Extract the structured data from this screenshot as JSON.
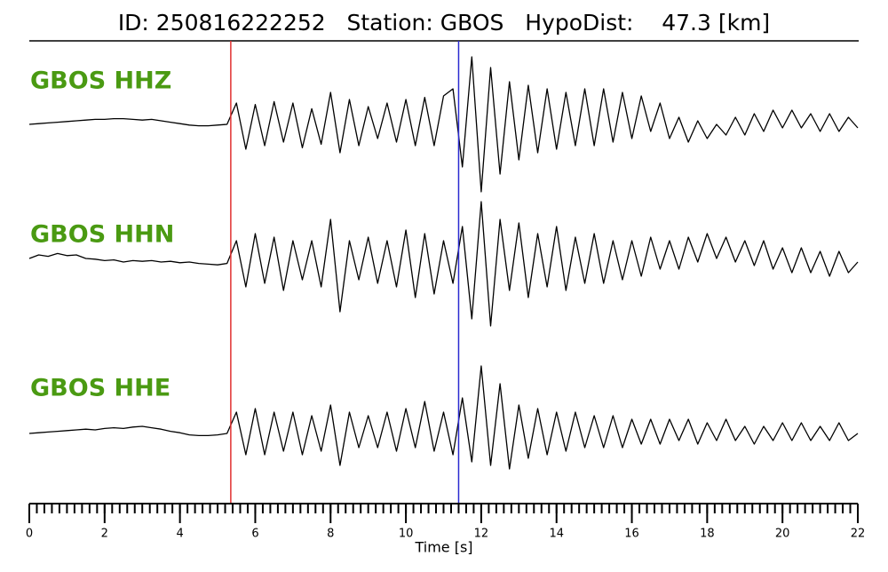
{
  "chart_data": {
    "type": "seismogram",
    "title": "ID: 250816222252   Station: GBOS   HypoDist:    47.3 [km]",
    "xlabel": "Time [s]",
    "xlim": [
      0,
      22
    ],
    "xticks": [
      0,
      2,
      4,
      6,
      8,
      10,
      12,
      14,
      16,
      18,
      20,
      22
    ],
    "xminor_step": 0.2,
    "ylim": [
      -1,
      1
    ],
    "label_color": "#4a9a12",
    "x": [
      0,
      0.25,
      0.5,
      0.75,
      1,
      1.25,
      1.5,
      1.75,
      2,
      2.25,
      2.5,
      2.75,
      3,
      3.25,
      3.5,
      3.75,
      4,
      4.25,
      4.5,
      4.75,
      5,
      5.25,
      5.5,
      5.75,
      6,
      6.25,
      6.5,
      6.75,
      7,
      7.25,
      7.5,
      7.75,
      8,
      8.25,
      8.5,
      8.75,
      9,
      9.25,
      9.5,
      9.75,
      10,
      10.25,
      10.5,
      10.75,
      11,
      11.25,
      11.5,
      11.75,
      12,
      12.25,
      12.5,
      12.75,
      13,
      13.25,
      13.5,
      13.75,
      14,
      14.25,
      14.5,
      14.75,
      15,
      15.25,
      15.5,
      15.75,
      16,
      16.25,
      16.5,
      16.75,
      17,
      17.25,
      17.5,
      17.75,
      18,
      18.25,
      18.5,
      18.75,
      19,
      19.25,
      19.5,
      19.75,
      20,
      20.25,
      20.5,
      20.75,
      21,
      21.25,
      21.5,
      21.75,
      22
    ],
    "series": [
      {
        "name": "GBOS HHZ",
        "color": "#000000",
        "values": [
          0,
          0.01,
          0.02,
          0.03,
          0.04,
          0.05,
          0.06,
          0.07,
          0.07,
          0.08,
          0.08,
          0.07,
          0.06,
          0.07,
          0.05,
          0.03,
          0.01,
          -0.01,
          -0.02,
          -0.02,
          -0.01,
          0.0,
          0.3,
          -0.35,
          0.28,
          -0.3,
          0.32,
          -0.25,
          0.3,
          -0.33,
          0.22,
          -0.28,
          0.45,
          -0.4,
          0.35,
          -0.3,
          0.25,
          -0.2,
          0.3,
          -0.25,
          0.35,
          -0.3,
          0.38,
          -0.3,
          0.4,
          0.5,
          -0.6,
          0.95,
          -0.95,
          0.8,
          -0.7,
          0.6,
          -0.5,
          0.55,
          -0.4,
          0.5,
          -0.35,
          0.45,
          -0.3,
          0.5,
          -0.3,
          0.5,
          -0.25,
          0.45,
          -0.2,
          0.4,
          -0.1,
          0.3,
          -0.2,
          0.1,
          -0.25,
          0.05,
          -0.2,
          0.0,
          -0.15,
          0.1,
          -0.15,
          0.15,
          -0.1,
          0.2,
          -0.05,
          0.2,
          -0.05,
          0.15,
          -0.1,
          0.15,
          -0.1,
          0.1,
          -0.05
        ]
      },
      {
        "name": "GBOS HHN",
        "color": "#000000",
        "values": [
          0.05,
          0.1,
          0.08,
          0.12,
          0.09,
          0.1,
          0.05,
          0.04,
          0.02,
          0.03,
          0.0,
          0.02,
          0.01,
          0.02,
          0.0,
          0.01,
          -0.01,
          0.0,
          -0.02,
          -0.03,
          -0.04,
          -0.02,
          0.3,
          -0.35,
          0.4,
          -0.3,
          0.35,
          -0.4,
          0.3,
          -0.25,
          0.3,
          -0.35,
          0.6,
          -0.7,
          0.3,
          -0.25,
          0.35,
          -0.3,
          0.3,
          -0.35,
          0.45,
          -0.5,
          0.4,
          -0.45,
          0.3,
          -0.3,
          0.5,
          -0.8,
          0.85,
          -0.9,
          0.6,
          -0.4,
          0.55,
          -0.5,
          0.4,
          -0.35,
          0.5,
          -0.4,
          0.35,
          -0.3,
          0.4,
          -0.3,
          0.3,
          -0.25,
          0.3,
          -0.2,
          0.35,
          -0.1,
          0.3,
          -0.1,
          0.35,
          0.0,
          0.4,
          0.05,
          0.35,
          0.0,
          0.3,
          -0.05,
          0.3,
          -0.1,
          0.2,
          -0.15,
          0.2,
          -0.15,
          0.15,
          -0.2,
          0.15,
          -0.15,
          0.0
        ]
      },
      {
        "name": "GBOS HHE",
        "color": "#000000",
        "values": [
          0.0,
          0.01,
          0.02,
          0.03,
          0.04,
          0.05,
          0.06,
          0.05,
          0.07,
          0.08,
          0.07,
          0.09,
          0.1,
          0.08,
          0.06,
          0.03,
          0.01,
          -0.02,
          -0.03,
          -0.03,
          -0.02,
          0.0,
          0.3,
          -0.3,
          0.35,
          -0.3,
          0.3,
          -0.25,
          0.3,
          -0.3,
          0.25,
          -0.25,
          0.4,
          -0.45,
          0.3,
          -0.2,
          0.25,
          -0.2,
          0.3,
          -0.25,
          0.35,
          -0.2,
          0.45,
          -0.25,
          0.3,
          -0.3,
          0.5,
          -0.4,
          0.95,
          -0.45,
          0.7,
          -0.5,
          0.4,
          -0.35,
          0.35,
          -0.3,
          0.3,
          -0.25,
          0.3,
          -0.2,
          0.25,
          -0.2,
          0.25,
          -0.2,
          0.2,
          -0.15,
          0.2,
          -0.15,
          0.2,
          -0.1,
          0.2,
          -0.15,
          0.15,
          -0.1,
          0.2,
          -0.1,
          0.1,
          -0.15,
          0.1,
          -0.1,
          0.15,
          -0.1,
          0.15,
          -0.1,
          0.1,
          -0.1,
          0.15,
          -0.1,
          0.0
        ]
      }
    ],
    "picks": [
      {
        "x": 5.35,
        "color": "#e03030"
      },
      {
        "x": 11.4,
        "color": "#2a2ad0"
      }
    ]
  }
}
